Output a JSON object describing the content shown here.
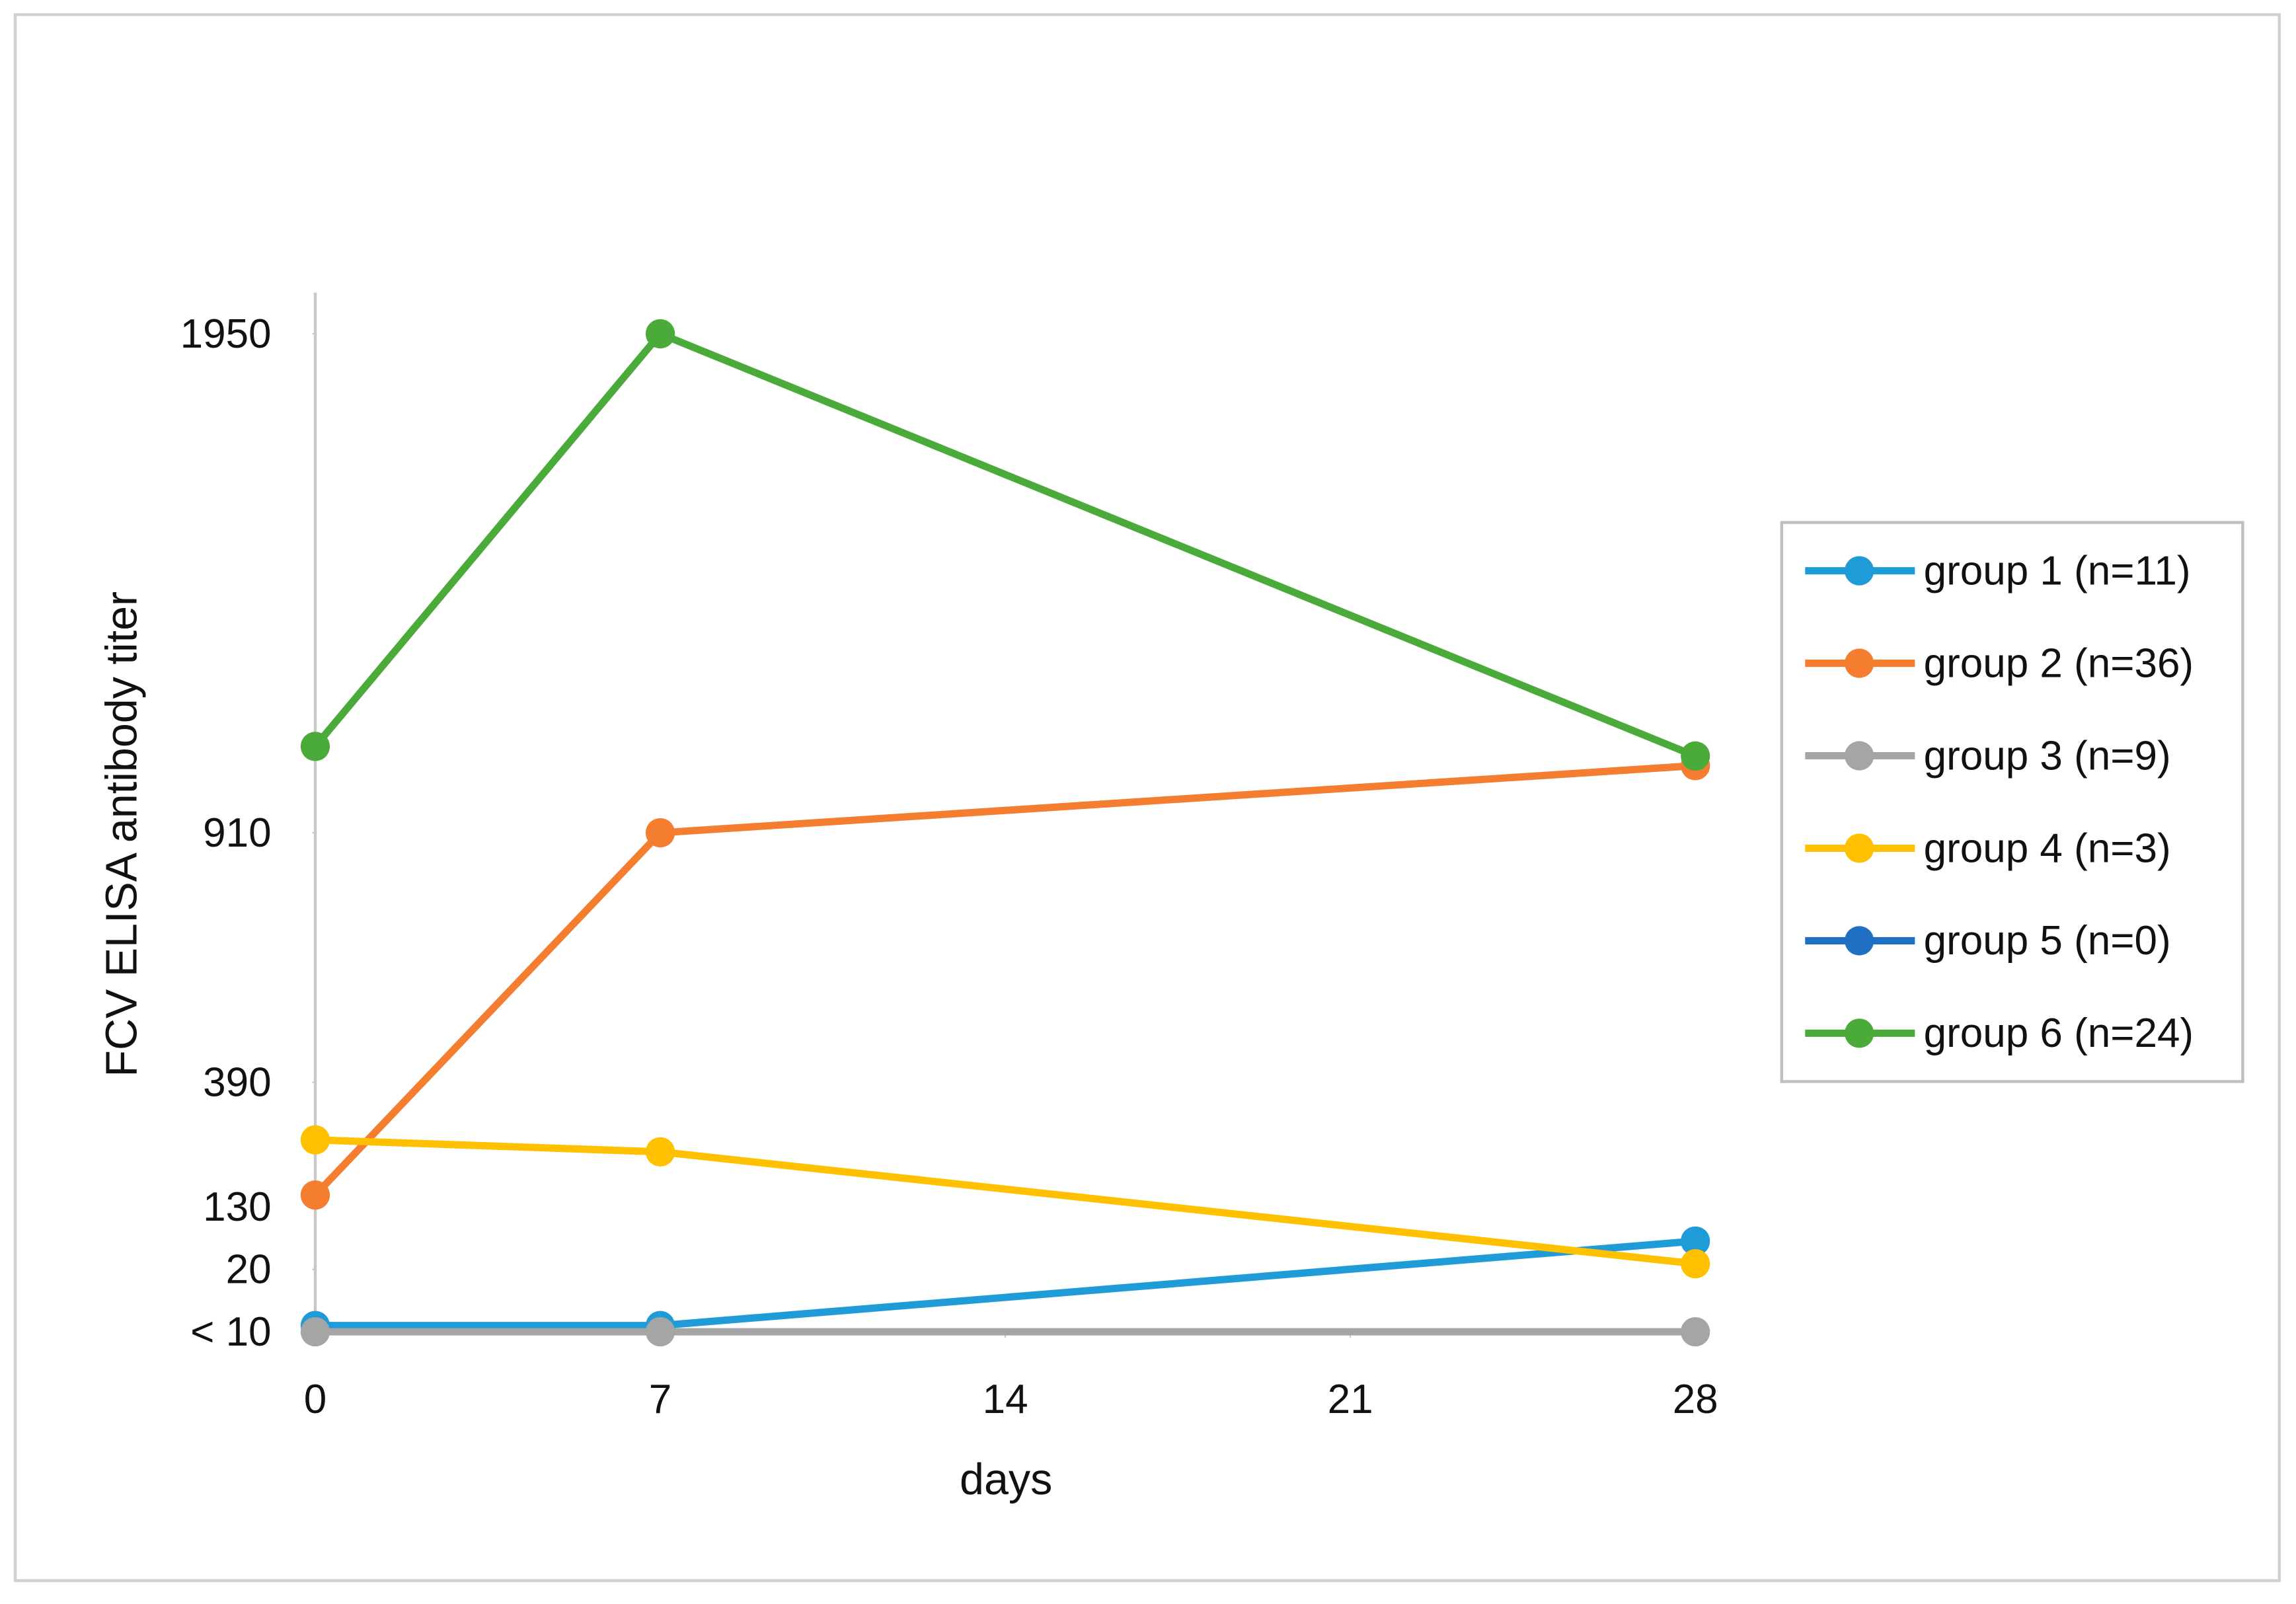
{
  "chart_data": {
    "type": "line",
    "xlabel": "days",
    "ylabel": "FCV ELISA antibody titer",
    "x": [
      0,
      7,
      28
    ],
    "xlim": [
      0,
      28
    ],
    "xticks": [
      0,
      7,
      14,
      21,
      28
    ],
    "ylim": [
      10,
      1950
    ],
    "yticks": [
      {
        "value": 10,
        "label": "< 10"
      },
      20,
      130,
      390,
      910,
      1950
    ],
    "legend": "right",
    "series": [
      {
        "name": "group 1 (n=11)",
        "color": "#1f9bd7",
        "values": [
          11,
          11,
          70
        ]
      },
      {
        "name": "group 2 (n=36)",
        "color": "#f47d30",
        "values": [
          155,
          910,
          1050
        ]
      },
      {
        "name": "group 3 (n=9)",
        "color": "#a5a5a5",
        "values": [
          10,
          10,
          10
        ]
      },
      {
        "name": "group 4 (n=3)",
        "color": "#ffc000",
        "values": [
          270,
          245,
          30
        ]
      },
      {
        "name": "group 5 (n=0)",
        "color": "#1f6fc2",
        "values": [
          null,
          null,
          null
        ]
      },
      {
        "name": "group 6 (n=24)",
        "color": "#4aab3a",
        "values": [
          1090,
          1950,
          1070
        ]
      }
    ]
  }
}
